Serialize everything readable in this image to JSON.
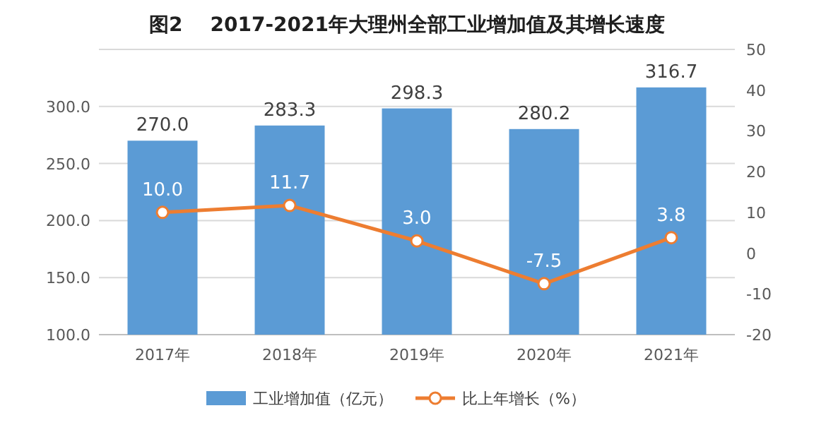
{
  "chart_data": {
    "type": "bar",
    "title": "图2    2017-2021年大理州全部工业增加值及其增长速度",
    "categories": [
      "2017年",
      "2018年",
      "2019年",
      "2020年",
      "2021年"
    ],
    "series": [
      {
        "name": "工业增加值（亿元）",
        "color": "#5b9bd5",
        "values": [
          270.0,
          283.3,
          298.3,
          280.2,
          316.7
        ],
        "value_labels": [
          "270.0",
          "283.3",
          "298.3",
          "280.2",
          "316.7"
        ]
      },
      {
        "name": "比上年增长（%）",
        "type": "line",
        "axis": "y2",
        "color": "#ed7d31",
        "values": [
          10.0,
          11.7,
          3.0,
          -7.5,
          3.8
        ],
        "value_labels": [
          "10.0",
          "11.7",
          "3.0",
          "-7.5",
          "3.8"
        ]
      }
    ],
    "ylim": [
      100,
      350
    ],
    "yticks": [
      {
        "value": 100,
        "label": "100.0"
      },
      {
        "value": 150,
        "label": "150.0"
      },
      {
        "value": 200,
        "label": "200.0"
      },
      {
        "value": 250,
        "label": "250.0"
      },
      {
        "value": 300,
        "label": "300.0"
      },
      {
        "value": 350,
        "label": null
      }
    ],
    "y2lim": [
      -20,
      50
    ],
    "y2ticks": [
      -20,
      -10,
      0,
      10,
      20,
      30,
      40,
      50
    ],
    "grid": "y",
    "legend": "bottom",
    "marker": "circle"
  }
}
